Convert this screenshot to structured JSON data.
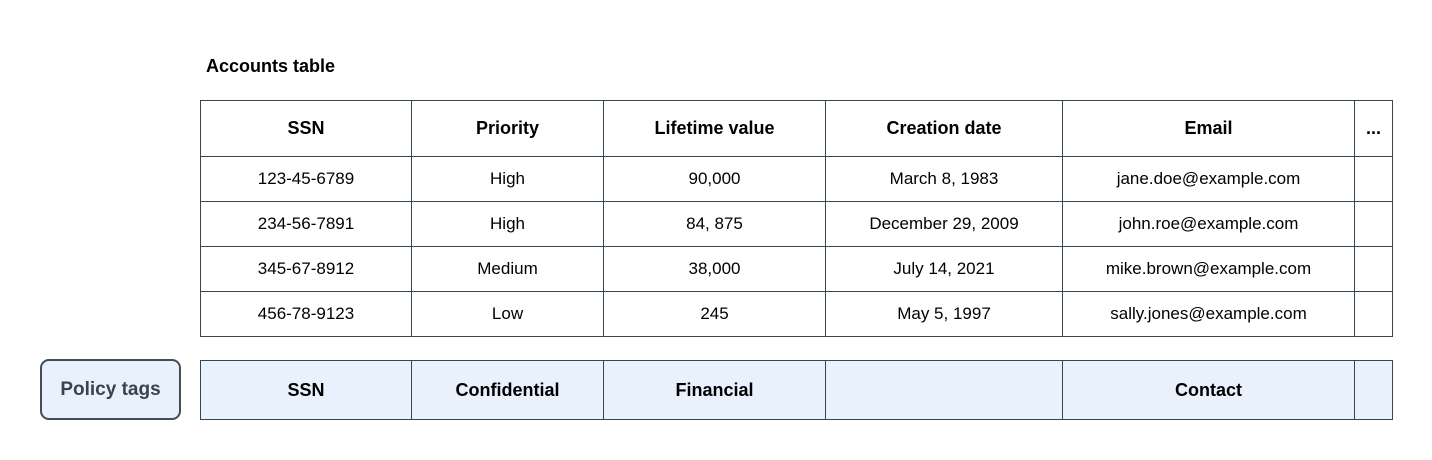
{
  "title": "Accounts table",
  "colors": {
    "border": "#37474f",
    "highlight_bg": "#e9f1fd",
    "text": "#000000",
    "button_text": "#3b434e"
  },
  "table": {
    "columns": [
      "SSN",
      "Priority",
      "Lifetime value",
      "Creation date",
      "Email",
      "..."
    ],
    "rows": [
      [
        "123-45-6789",
        "High",
        "90,000",
        "March 8, 1983",
        "jane.doe@example.com",
        ""
      ],
      [
        "234-56-7891",
        "High",
        "84, 875",
        "December 29, 2009",
        "john.roe@example.com",
        ""
      ],
      [
        "345-67-8912",
        "Medium",
        "38,000",
        "July 14, 2021",
        "mike.brown@example.com",
        ""
      ],
      [
        "456-78-9123",
        "Low",
        "245",
        "May 5, 1997",
        "sally.jones@example.com",
        ""
      ]
    ]
  },
  "policy": {
    "button_label": "Policy tags",
    "tags": [
      "SSN",
      "Confidential",
      "Financial",
      "",
      "Contact",
      ""
    ]
  }
}
